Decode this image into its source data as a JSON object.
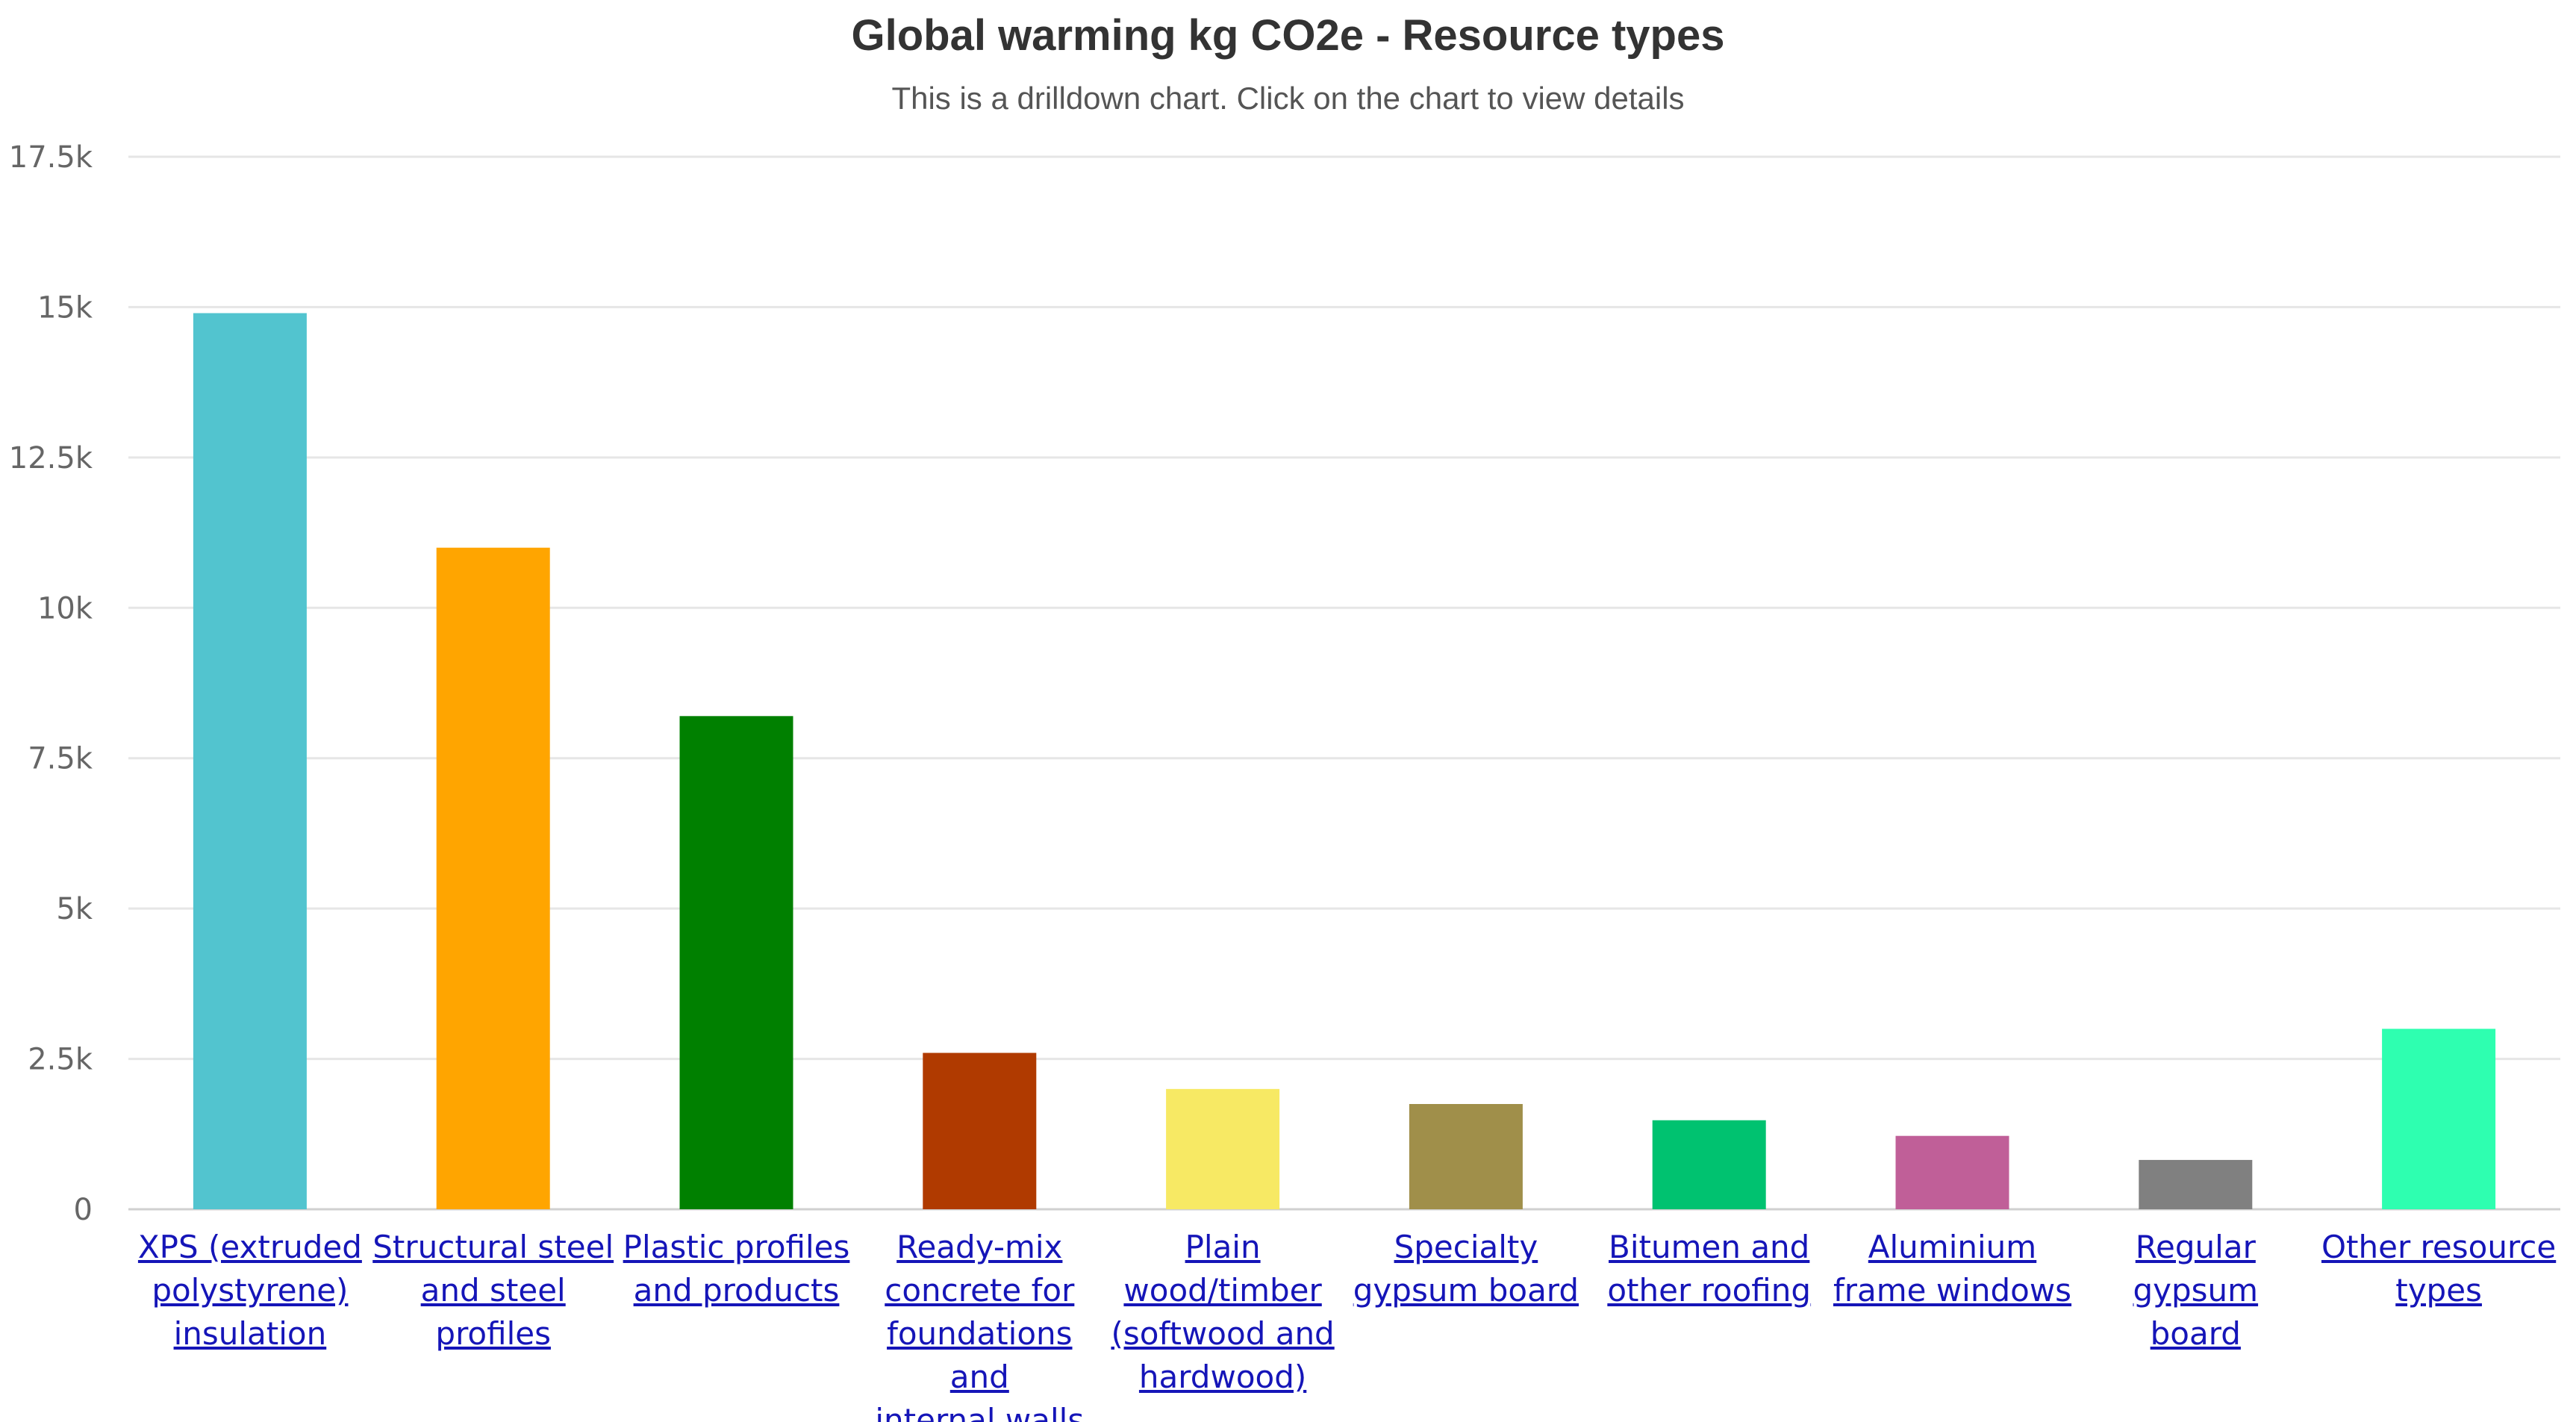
{
  "chart_data": {
    "type": "bar",
    "title": "Global warming kg CO2e - Resource types",
    "subtitle": "This is a drilldown chart. Click on the chart to view details",
    "xlabel": "",
    "ylabel": "",
    "ylim": [
      0,
      17500
    ],
    "yticks": [
      0,
      2500,
      5000,
      7500,
      10000,
      12500,
      15000,
      17500
    ],
    "ytick_labels": [
      "0",
      "2.5k",
      "5k",
      "7.5k",
      "10k",
      "12.5k",
      "15k",
      "17.5k"
    ],
    "grid": true,
    "categories": [
      "XPS (extruded polystyrene) insulation",
      "Structural steel and steel profiles",
      "Plastic profiles and products",
      "Ready-mix concrete for foundations and internal walls",
      "Plain wood/timber (softwood and hardwood)",
      "Specialty gypsum board",
      "Bitumen and other roofing",
      "Aluminium frame windows",
      "Regular gypsum board",
      "Other resource types"
    ],
    "category_lines": [
      [
        "XPS (extruded",
        "polystyrene)",
        "insulation"
      ],
      [
        "Structural steel",
        "and steel",
        "profiles"
      ],
      [
        "Plastic profiles",
        "and products"
      ],
      [
        "Ready-mix",
        "concrete for",
        "foundations and",
        "internal walls"
      ],
      [
        "Plain",
        "wood/timber",
        "(softwood and",
        "hardwood)"
      ],
      [
        "Specialty",
        "gypsum board"
      ],
      [
        "Bitumen and",
        "other roofing"
      ],
      [
        "Aluminium",
        "frame windows"
      ],
      [
        "Regular gypsum",
        "board"
      ],
      [
        "Other resource",
        "types"
      ]
    ],
    "values": [
      14900,
      11000,
      8200,
      2600,
      2000,
      1750,
      1480,
      1220,
      820,
      3000
    ],
    "colors": [
      "#52c4cf",
      "#ffa500",
      "#008000",
      "#b03a00",
      "#f7e964",
      "#a08f4a",
      "#00c270",
      "#c05f98",
      "#808080",
      "#2effb0"
    ],
    "label_color": "#1515b8",
    "grid_color": "#e6e6e6"
  }
}
